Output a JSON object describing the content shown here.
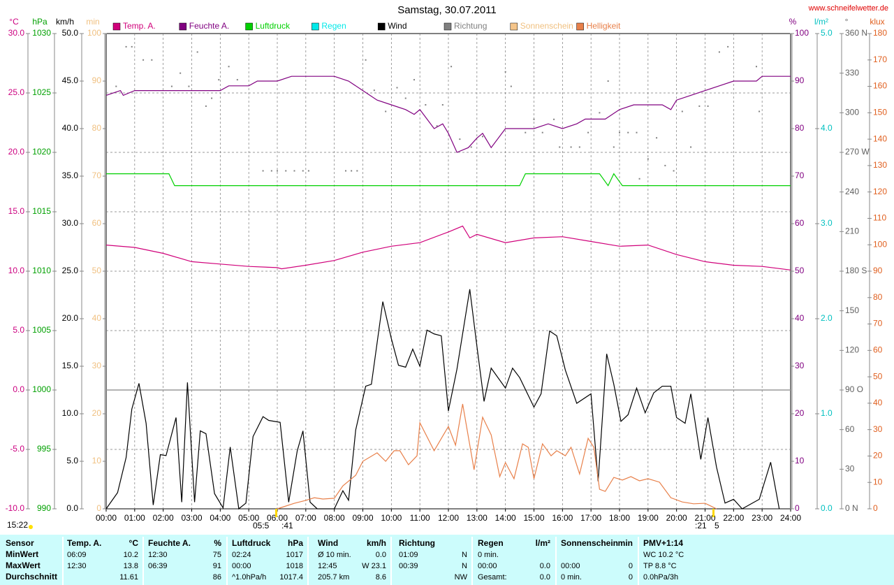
{
  "chart_data": {
    "type": "line",
    "title": "Samstag, 30.07.2011",
    "source": "www.schneifelwetter.de",
    "annotations": [
      "15:22",
      "05:5",
      ":41",
      ":21",
      "5"
    ],
    "xlim": [
      0,
      24
    ],
    "xticks": [
      {
        "value": 0,
        "label": "00:00"
      },
      {
        "value": 1,
        "label": "01:00"
      },
      {
        "value": 2,
        "label": "02:00"
      },
      {
        "value": 3,
        "label": "03:00"
      },
      {
        "value": 4,
        "label": "04:00"
      },
      {
        "value": 5,
        "label": "05:00"
      },
      {
        "value": 6,
        "label": "06:00"
      },
      {
        "value": 7,
        "label": "07:00"
      },
      {
        "value": 8,
        "label": "08:00"
      },
      {
        "value": 9,
        "label": "09:00"
      },
      {
        "value": 10,
        "label": "10:00"
      },
      {
        "value": 11,
        "label": "11:00"
      },
      {
        "value": 12,
        "label": "12:00"
      },
      {
        "value": 13,
        "label": "13:00"
      },
      {
        "value": 14,
        "label": "14:00"
      },
      {
        "value": 15,
        "label": "15:00"
      },
      {
        "value": 16,
        "label": "16:00"
      },
      {
        "value": 17,
        "label": "17:00"
      },
      {
        "value": 18,
        "label": "18:00"
      },
      {
        "value": 19,
        "label": "19:00"
      },
      {
        "value": 20,
        "label": "20:00"
      },
      {
        "value": 21,
        "label": "21:00"
      },
      {
        "value": 22,
        "label": "22:00"
      },
      {
        "value": 23,
        "label": "23:00"
      },
      {
        "value": 24,
        "label": "24:00"
      }
    ],
    "grid": "temp",
    "axes": {
      "temp": {
        "label": "°C",
        "color": "#cc0080",
        "lim": [
          -10,
          30
        ],
        "ticks": [
          {
            "value": -10,
            "label": "-10.0"
          },
          {
            "value": -5,
            "label": "-5.0"
          },
          {
            "value": 0,
            "label": "0.0"
          },
          {
            "value": 5,
            "label": "5.0"
          },
          {
            "value": 10,
            "label": "10.0"
          },
          {
            "value": 15,
            "label": "15.0"
          },
          {
            "value": 20,
            "label": "20.0"
          },
          {
            "value": 25,
            "label": "25.0"
          },
          {
            "value": 30,
            "label": "30.0"
          }
        ]
      },
      "pressure": {
        "label": "hPa",
        "color": "#00a000",
        "lim": [
          990,
          1030
        ],
        "ticks": [
          990,
          995,
          1000,
          1005,
          1010,
          1015,
          1020,
          1025,
          1030
        ]
      },
      "wind": {
        "label": "km/h",
        "color": "#000000",
        "lim": [
          0,
          50
        ],
        "ticks": [
          {
            "value": 0,
            "label": "0.0"
          },
          {
            "value": 5,
            "label": "5.0"
          },
          {
            "value": 10,
            "label": "10.0"
          },
          {
            "value": 15,
            "label": "15.0"
          },
          {
            "value": 20,
            "label": "20.0"
          },
          {
            "value": 25,
            "label": "25.0"
          },
          {
            "value": 30,
            "label": "30.0"
          },
          {
            "value": 35,
            "label": "35.0"
          },
          {
            "value": 40,
            "label": "40.0"
          },
          {
            "value": 45,
            "label": "45.0"
          },
          {
            "value": 50,
            "label": "50.0"
          }
        ]
      },
      "sun": {
        "label": "min",
        "color": "#f0c080",
        "lim": [
          0,
          100
        ],
        "ticks": [
          0,
          10,
          20,
          30,
          40,
          50,
          60,
          70,
          80,
          90,
          100
        ]
      },
      "humidity": {
        "label": "%",
        "color": "#800080",
        "lim": [
          0,
          100
        ],
        "ticks": [
          0,
          10,
          20,
          30,
          40,
          50,
          60,
          70,
          80,
          90,
          100
        ]
      },
      "rain": {
        "label": "l/m²",
        "color": "#00c0c0",
        "lim": [
          0,
          5
        ],
        "ticks": [
          {
            "value": 0,
            "label": "0.0"
          },
          {
            "value": 1,
            "label": "1.0"
          },
          {
            "value": 2,
            "label": "2.0"
          },
          {
            "value": 3,
            "label": "3.0"
          },
          {
            "value": 4,
            "label": "4.0"
          },
          {
            "value": 5,
            "label": "5.0"
          }
        ]
      },
      "direction": {
        "label": "°",
        "color": "#606060",
        "lim": [
          0,
          360
        ],
        "ticks": [
          {
            "value": 0,
            "label": "0 N"
          },
          30,
          60,
          {
            "value": 90,
            "label": "90 O"
          },
          120,
          150,
          {
            "value": 180,
            "label": "180 S"
          },
          210,
          240,
          {
            "value": 270,
            "label": "270 W"
          },
          300,
          330,
          {
            "value": 360,
            "label": "360 N"
          }
        ]
      },
      "light": {
        "label": "klux",
        "color": "#e06020",
        "lim": [
          0,
          180
        ],
        "ticks": [
          0,
          10,
          20,
          30,
          40,
          50,
          60,
          70,
          80,
          90,
          100,
          110,
          120,
          130,
          140,
          150,
          160,
          170,
          180
        ]
      }
    },
    "series": [
      {
        "name": "Temp. A.",
        "color": "#d0007a",
        "axis": "temp",
        "x": [
          0,
          1,
          2,
          3,
          4,
          5,
          6,
          6.15,
          7,
          8,
          9,
          10,
          11,
          12,
          12.5,
          12.75,
          13,
          14,
          15,
          16,
          17,
          18,
          19,
          20,
          21,
          22,
          23,
          24
        ],
        "values": [
          12.2,
          12.0,
          11.5,
          10.8,
          10.6,
          10.4,
          10.3,
          10.2,
          10.5,
          10.9,
          11.6,
          12.1,
          12.4,
          13.3,
          13.8,
          12.8,
          13.1,
          12.4,
          12.8,
          12.9,
          12.5,
          12.1,
          12.2,
          11.4,
          10.8,
          10.5,
          10.4,
          10.1
        ]
      },
      {
        "name": "Feuchte A.",
        "color": "#800080",
        "axis": "humidity",
        "x": [
          0,
          0.5,
          0.6,
          1,
          2,
          3,
          4,
          4.3,
          5,
          5.3,
          6,
          6.5,
          7,
          8,
          8.5,
          9,
          9.5,
          10,
          10.5,
          10.8,
          11,
          11.5,
          11.8,
          12,
          12.3,
          12.7,
          13,
          13.2,
          13.5,
          14,
          15,
          15.5,
          16,
          16.5,
          16.8,
          17.5,
          18,
          18.5,
          19,
          19.5,
          19.8,
          20,
          20.5,
          21,
          21.5,
          22,
          22.8,
          23,
          24
        ],
        "values": [
          87,
          88,
          87,
          88,
          88,
          88,
          88,
          89,
          89,
          90,
          90,
          91,
          91,
          91,
          90,
          88,
          86,
          85,
          84,
          83,
          84,
          80,
          81,
          79,
          75,
          76,
          78,
          79,
          76,
          80,
          80,
          81,
          80,
          81,
          82,
          82,
          84,
          85,
          85,
          85,
          84,
          86,
          87,
          88,
          89,
          90,
          90,
          91,
          91
        ]
      },
      {
        "name": "Luftdruck",
        "color": "#00d000",
        "axis": "pressure",
        "x": [
          0,
          2.2,
          2.4,
          14.5,
          14.7,
          17.3,
          17.6,
          17.8,
          18.1,
          24
        ],
        "values": [
          1018.2,
          1018.2,
          1017.2,
          1017.2,
          1018.2,
          1018.2,
          1017.2,
          1018.2,
          1017.2,
          1017.2
        ]
      },
      {
        "name": "Regen",
        "color": "#00e8e8",
        "axis": "rain",
        "x": [],
        "values": []
      },
      {
        "name": "Wind",
        "color": "#000000",
        "axis": "wind",
        "x": [
          0,
          0.4,
          0.7,
          0.9,
          1.15,
          1.4,
          1.65,
          1.9,
          2.1,
          2.45,
          2.65,
          2.85,
          3.1,
          3.3,
          3.5,
          3.8,
          4.1,
          4.35,
          4.65,
          4.9,
          5.15,
          5.5,
          5.7,
          6.1,
          6.4,
          6.7,
          6.9,
          7.15,
          7.4,
          8.0,
          8.3,
          8.5,
          8.75,
          9.1,
          9.3,
          9.7,
          10.0,
          10.25,
          10.5,
          10.75,
          11.0,
          11.25,
          11.5,
          11.75,
          12.0,
          12.3,
          12.75,
          13.0,
          13.25,
          13.5,
          14.0,
          14.25,
          14.5,
          15.0,
          15.25,
          15.55,
          15.8,
          16.1,
          16.5,
          17.0,
          17.25,
          17.55,
          17.8,
          18.05,
          18.3,
          18.6,
          18.9,
          19.2,
          19.5,
          19.8,
          20.0,
          20.3,
          20.5,
          20.85,
          21.1,
          21.4,
          21.7,
          22.0,
          22.3,
          22.9,
          23.3,
          23.6
        ],
        "values": [
          0,
          1.7,
          5.4,
          10.5,
          13.2,
          9.0,
          0.4,
          5.7,
          5.6,
          9.6,
          0.7,
          13.3,
          0.7,
          8.2,
          7.9,
          1.6,
          0.1,
          6.5,
          0,
          0.6,
          7.6,
          9.7,
          9.3,
          9.1,
          0.7,
          6.1,
          8.2,
          0.7,
          0,
          0,
          1.9,
          0.9,
          8.3,
          12.9,
          13.1,
          21.8,
          17.9,
          15.1,
          14.9,
          16.8,
          15.0,
          18.8,
          18.4,
          18.2,
          10.3,
          14.7,
          23.1,
          17.1,
          11.3,
          14.8,
          12.7,
          14.8,
          13.8,
          10.7,
          12.1,
          18.7,
          18.2,
          14.6,
          11.1,
          12.1,
          2.9,
          16.3,
          13.1,
          9.2,
          9.9,
          12.7,
          10.1,
          12.2,
          12.9,
          12.9,
          9.6,
          9.0,
          12.1,
          5.2,
          9.6,
          4.4,
          0.6,
          1.0,
          0,
          1.0,
          4.9,
          0
        ]
      },
      {
        "name": "Richtung",
        "color": "#808080",
        "axis": "direction",
        "type": "scatter",
        "x": [
          0.35,
          0.7,
          0.9,
          1.3,
          1.6,
          2.3,
          2.6,
          2.9,
          3.2,
          3.5,
          3.7,
          3.95,
          4.3,
          4.6,
          5.5,
          5.8,
          6.0,
          6.3,
          6.6,
          6.9,
          7.1,
          8.4,
          8.6,
          8.8,
          9.1,
          9.4,
          9.8,
          10.2,
          10.5,
          10.8,
          11.2,
          11.6,
          11.8,
          12.1,
          12.4,
          12.8,
          13.2,
          14.0,
          14.2,
          14.7,
          15.0,
          15.3,
          15.7,
          15.9,
          16.3,
          16.6,
          16.9,
          17.3,
          17.6,
          17.8,
          18.0,
          18.3,
          18.6,
          18.7,
          19.0,
          19.3,
          19.6,
          19.9,
          20.2,
          20.5,
          20.8,
          21.1,
          21.5,
          21.8,
          22.8,
          22.9
        ],
        "values": [
          320,
          350,
          350,
          340,
          340,
          320,
          330,
          320,
          346,
          305,
          311,
          325,
          335,
          325,
          256,
          256,
          256,
          256,
          256,
          256,
          256,
          256,
          256,
          256,
          340,
          317,
          301,
          319,
          311,
          325,
          306,
          290,
          306,
          335,
          280,
          274,
          282,
          331,
          320,
          285,
          295,
          285,
          295,
          274,
          274,
          274,
          285,
          300,
          324,
          274,
          285,
          285,
          285,
          250,
          265,
          281,
          260,
          256,
          301,
          274,
          305,
          305,
          346,
          350,
          335,
          301
        ]
      },
      {
        "name": "Sonnenschein",
        "color": "#f5c58a",
        "axis": "sun",
        "x": [],
        "values": []
      },
      {
        "name": "Helligkeit",
        "color": "#e8804a",
        "axis": "light",
        "x": [
          6.0,
          6.6,
          7.0,
          7.3,
          7.6,
          8.0,
          8.3,
          8.75,
          9.0,
          9.5,
          9.8,
          10.1,
          10.3,
          10.6,
          10.9,
          11.0,
          11.5,
          12.0,
          12.25,
          12.5,
          12.9,
          13.2,
          13.5,
          13.8,
          14.0,
          14.3,
          14.6,
          14.8,
          15.0,
          15.3,
          15.6,
          15.8,
          16.1,
          16.3,
          16.6,
          16.9,
          17.1,
          17.3,
          17.5,
          17.8,
          18.1,
          18.4,
          18.7,
          19.0,
          19.4,
          19.8,
          20.2,
          20.6,
          21.0,
          21.4
        ],
        "values": [
          0,
          2.1,
          3.2,
          4.2,
          3.7,
          4,
          8.7,
          12.7,
          18,
          21.2,
          18,
          22,
          22,
          16.7,
          20.1,
          32.6,
          22,
          31.2,
          24.1,
          39.7,
          14.8,
          34.7,
          28,
          12.2,
          17.5,
          11.4,
          24.6,
          23.3,
          11.4,
          24.6,
          20.1,
          22,
          20.1,
          23.3,
          13.2,
          26.7,
          23.3,
          7.4,
          6.6,
          11.9,
          10.9,
          12.2,
          10.6,
          11.4,
          10.1,
          4.2,
          2.6,
          1.9,
          2.1,
          0
        ]
      }
    ]
  },
  "table": {
    "rows": [
      [
        "Sensor",
        "Temp. A.",
        "°C",
        "Feuchte A.",
        "%",
        "Luftdruck",
        "hPa",
        "Wind",
        "km/h",
        "Richtung",
        null,
        "Regen",
        "l/m²",
        "Sonnenschein",
        "min",
        "PMV+1:14",
        null
      ],
      [
        "MinWert",
        "06:09",
        "10.2",
        "12:30",
        "75",
        "02:24",
        "1017",
        "Ø 10 min.",
        "0.0",
        "01:09",
        "N",
        "0 min.",
        null,
        null,
        null,
        "WC 10.2 °C",
        null
      ],
      [
        "MaxWert",
        "12:30",
        "13.8",
        "06:39",
        "91",
        "00:00",
        "1018",
        "12:45",
        "W 23.1",
        "00:39",
        "N",
        "00:00",
        "0.0",
        "00:00",
        "0",
        "TP 8.8 °C",
        null
      ],
      [
        "Durchschnitt",
        null,
        "11.61",
        null,
        "86",
        "^1.0hPa/h",
        "1017.4",
        "205.7 km",
        "8.6",
        null,
        "NW",
        "Gesamt:",
        "0.0",
        "0 min.",
        "0",
        "0.0hPa/3h",
        null
      ]
    ]
  }
}
